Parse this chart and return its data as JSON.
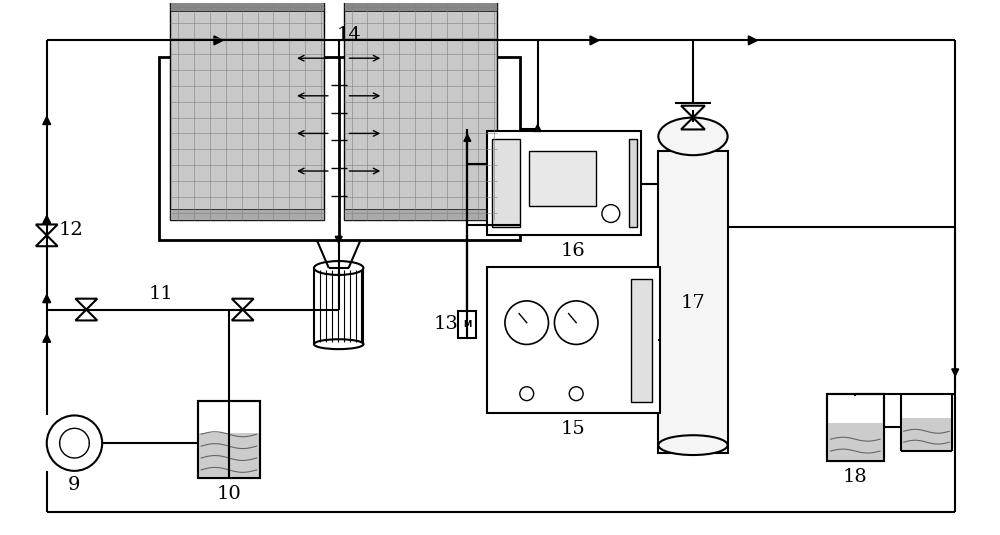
{
  "bg_color": "#ffffff",
  "line_color": "#000000",
  "lw": 1.5
}
